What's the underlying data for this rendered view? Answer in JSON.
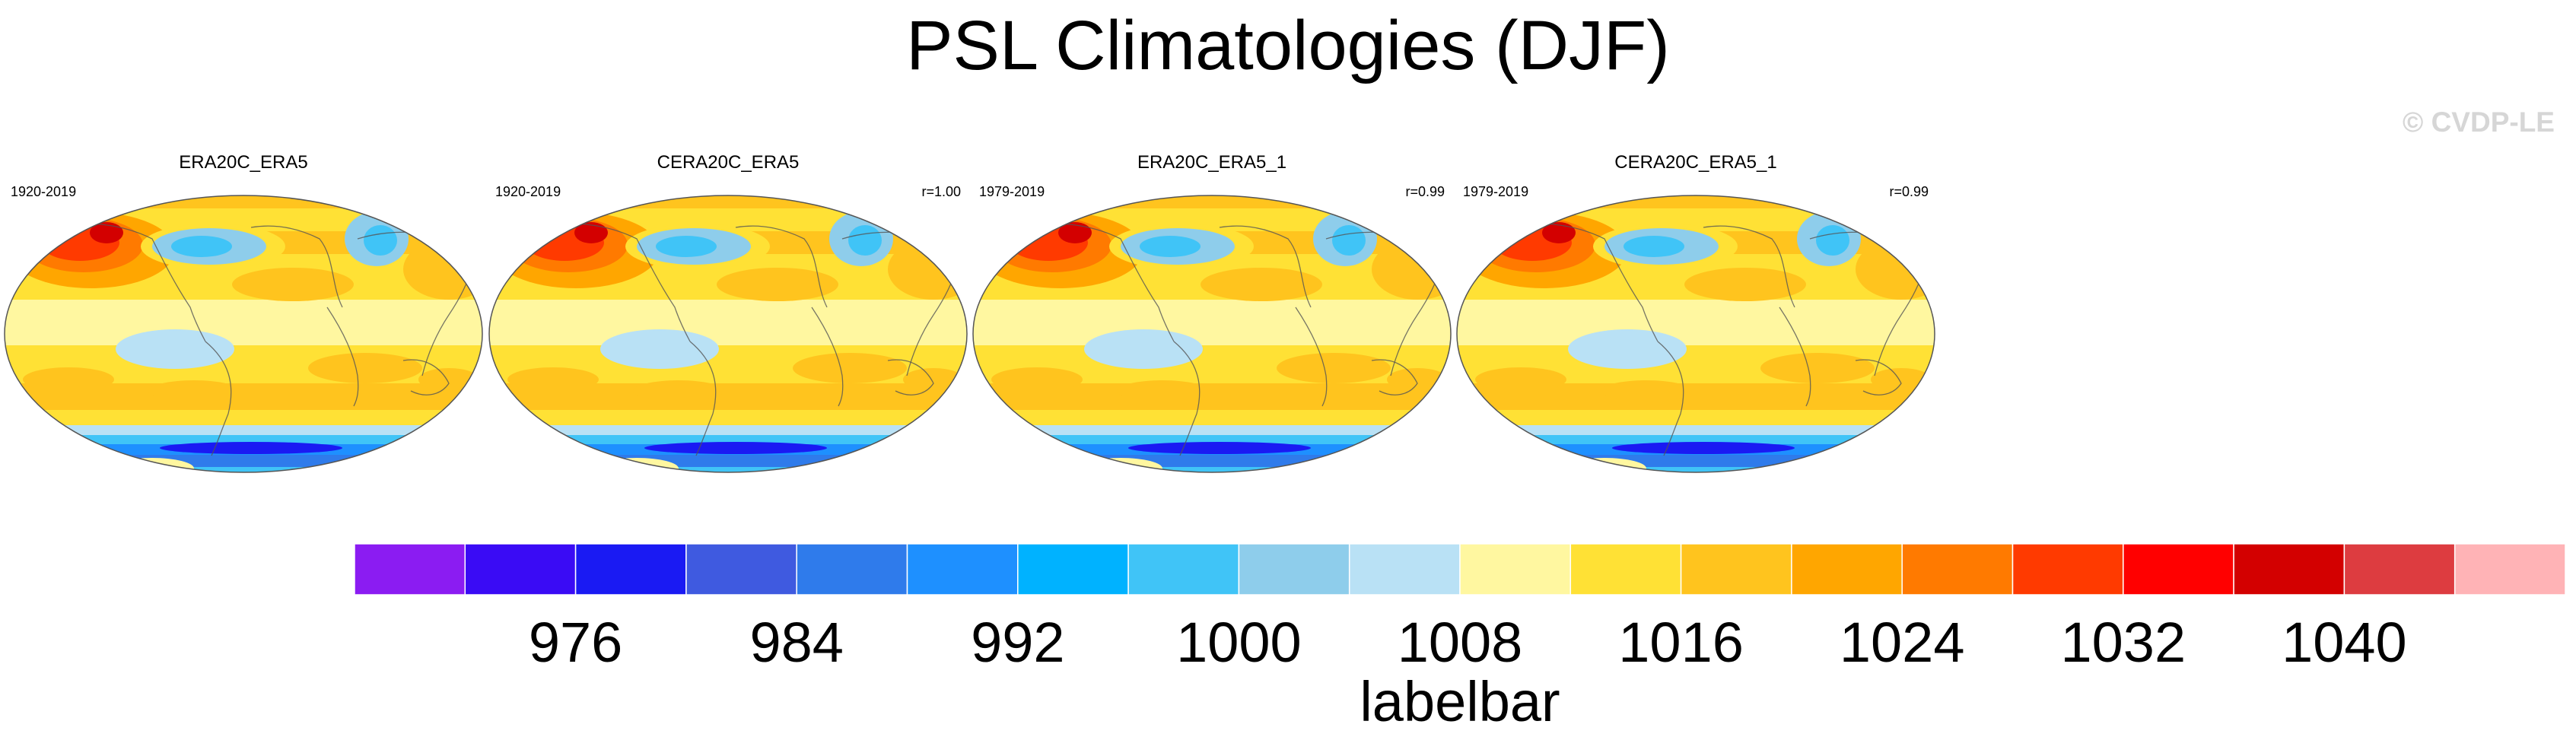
{
  "page": {
    "title": "PSL Climatologies (DJF)",
    "watermark": "© CVDP-LE"
  },
  "chart_data": [
    {
      "type": "heatmap",
      "title": "ERA20C_ERA5",
      "period": "1920-2019",
      "correlation": ""
    },
    {
      "type": "heatmap",
      "title": "CERA20C_ERA5",
      "period": "1920-2019",
      "correlation": "r=1.00"
    },
    {
      "type": "heatmap",
      "title": "ERA20C_ERA5_1",
      "period": "1979-2019",
      "correlation": "r=0.99"
    },
    {
      "type": "heatmap",
      "title": "CERA20C_ERA5_1",
      "period": "1979-2019",
      "correlation": "r=0.99"
    }
  ],
  "legend": {
    "title": "labelbar",
    "ticks": [
      976,
      984,
      992,
      1000,
      1008,
      1016,
      1024,
      1032,
      1040
    ],
    "colors": [
      "#8B1CF2",
      "#3A0BF5",
      "#1A1AF3",
      "#3F5AE0",
      "#2F7BEB",
      "#1E90FF",
      "#00B2FF",
      "#40C4F7",
      "#8ECDEB",
      "#B9E1F5",
      "#FFF7A0",
      "#FFE135",
      "#FFC41E",
      "#FFA600",
      "#FF7A00",
      "#FF3A00",
      "#FF0000",
      "#D30000",
      "#DD3C40",
      "#FFB3B6"
    ]
  }
}
